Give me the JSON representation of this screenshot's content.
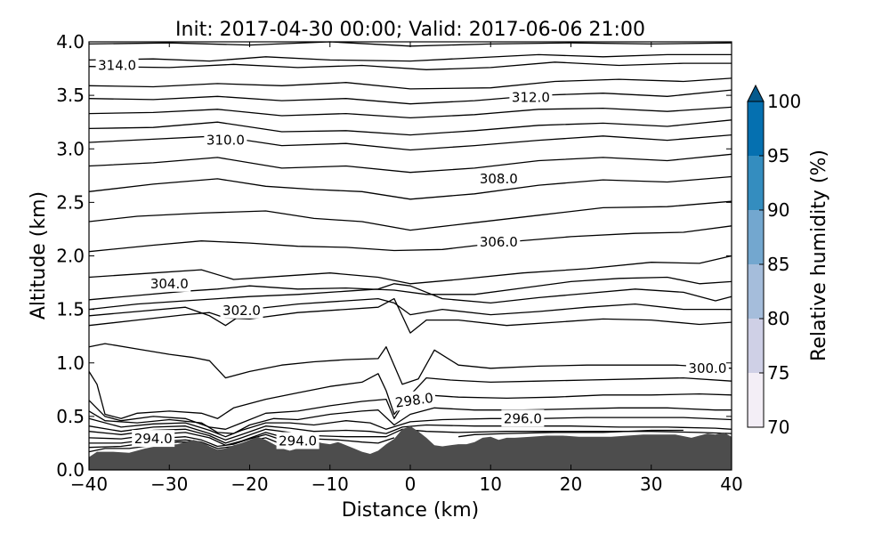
{
  "chart_data": {
    "type": "contour",
    "title": "Init: 2017-04-30 00:00; Valid: 2017-06-06 21:00",
    "xlabel": "Distance (km)",
    "ylabel": "Altitude (km)",
    "xlim": [
      -40,
      40
    ],
    "ylim": [
      0.0,
      4.0
    ],
    "xticks": [
      "−40",
      "−30",
      "−20",
      "−10",
      "0",
      "10",
      "20",
      "30",
      "40"
    ],
    "yticks": [
      "0.0",
      "0.5",
      "1.0",
      "1.5",
      "2.0",
      "2.5",
      "3.0",
      "3.5",
      "4.0"
    ],
    "grid": false,
    "contour_variable": "potential temperature",
    "contour_labels": [
      "314.0",
      "312.0",
      "310.0",
      "308.0",
      "306.0",
      "304.0",
      "302.0",
      "300.0",
      "298.0",
      "296.0",
      "294.0",
      "294.0"
    ],
    "colorbar": {
      "label": "Relative humidity (%)",
      "ticks": [
        "70",
        "75",
        "80",
        "85",
        "90",
        "95",
        "100"
      ],
      "colors": [
        "#f3eef6",
        "#cfd0e6",
        "#a5bddb",
        "#73a7cf",
        "#348dbf",
        "#0570b0",
        "#045a8d"
      ],
      "extend": "max"
    },
    "terrain": {
      "color": "#4d4d4d",
      "x": [
        -40,
        -39,
        -37,
        -35,
        -33,
        -31,
        -29,
        -28,
        -27,
        -26,
        -25,
        -24,
        -23,
        -22,
        -21,
        -20,
        -19,
        -18,
        -17,
        -16,
        -15,
        -14,
        -13,
        -12,
        -11,
        -10,
        -9,
        -8,
        -7,
        -6,
        -5,
        -4,
        -3,
        -2,
        -1,
        0,
        1,
        2,
        3,
        4,
        5,
        6,
        7,
        8,
        9,
        10,
        11,
        12,
        13,
        15,
        17,
        19,
        21,
        23,
        25,
        27,
        29,
        31,
        33,
        35,
        36,
        37,
        38,
        39,
        40
      ],
      "y": [
        0.12,
        0.17,
        0.17,
        0.16,
        0.2,
        0.23,
        0.24,
        0.26,
        0.28,
        0.26,
        0.22,
        0.19,
        0.2,
        0.23,
        0.25,
        0.28,
        0.31,
        0.28,
        0.24,
        0.2,
        0.18,
        0.2,
        0.25,
        0.27,
        0.25,
        0.24,
        0.26,
        0.23,
        0.2,
        0.17,
        0.15,
        0.18,
        0.24,
        0.29,
        0.38,
        0.41,
        0.36,
        0.3,
        0.23,
        0.22,
        0.23,
        0.24,
        0.24,
        0.26,
        0.3,
        0.31,
        0.28,
        0.3,
        0.3,
        0.31,
        0.32,
        0.32,
        0.31,
        0.31,
        0.31,
        0.32,
        0.33,
        0.33,
        0.33,
        0.3,
        0.32,
        0.34,
        0.33,
        0.35,
        0.31
      ]
    }
  }
}
